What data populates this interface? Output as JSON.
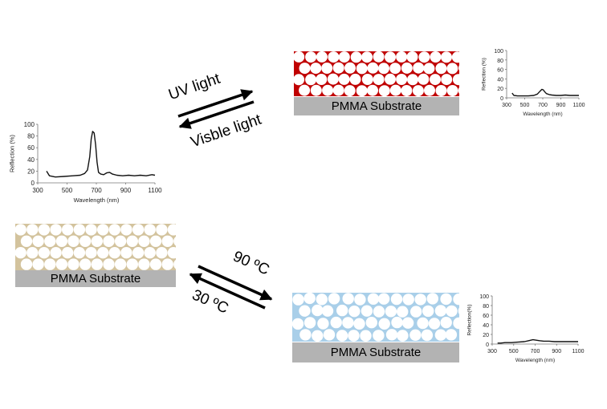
{
  "substrate_label": "PMMA Substrate",
  "uv_label": "UV light",
  "visible_label": "Visble light",
  "hot_label": "90 ºC",
  "cold_label": "30 ºC",
  "colors": {
    "red_matrix": "#c00000",
    "beige_matrix": "#d3c39d",
    "blue_matrix": "#a9cfe9",
    "substrate": "#b3b3b3"
  },
  "chart_data": [
    {
      "id": "initial",
      "type": "line",
      "xlabel": "Wavelength (nm)",
      "ylabel": "Reflection (%)",
      "xlim": [
        300,
        1100
      ],
      "ylim": [
        0,
        100
      ],
      "xticks": [
        300,
        500,
        700,
        900,
        1100
      ],
      "yticks": [
        0,
        20,
        40,
        60,
        80,
        100
      ],
      "xtick_labels": [
        "300",
        "500",
        "700",
        "900",
        "1100"
      ],
      "ytick_labels": [
        "0",
        "20",
        "40",
        "60",
        "80",
        "100"
      ],
      "x": [
        360,
        380,
        420,
        480,
        540,
        590,
        620,
        640,
        655,
        665,
        675,
        685,
        695,
        705,
        715,
        730,
        750,
        770,
        790,
        810,
        840,
        880,
        920,
        960,
        1000,
        1040,
        1080,
        1100
      ],
      "y": [
        20,
        12,
        10,
        11,
        12,
        13,
        16,
        22,
        45,
        75,
        88,
        85,
        65,
        35,
        18,
        15,
        14,
        17,
        18,
        15,
        13,
        12,
        13,
        12,
        13,
        12,
        14,
        13
      ]
    },
    {
      "id": "uv",
      "type": "line",
      "xlabel": "Wavelength (nm)",
      "ylabel": "Reflection (%)",
      "xlim": [
        300,
        1100
      ],
      "ylim": [
        0,
        100
      ],
      "xticks": [
        300,
        500,
        700,
        900,
        1100
      ],
      "yticks": [
        0,
        20,
        40,
        60,
        80,
        100
      ],
      "xtick_labels": [
        "300",
        "500",
        "700",
        "900",
        "1100"
      ],
      "ytick_labels": [
        "0",
        "20",
        "40",
        "60",
        "80",
        "100"
      ],
      "x": [
        360,
        380,
        420,
        480,
        540,
        600,
        640,
        670,
        690,
        705,
        720,
        740,
        770,
        800,
        850,
        900,
        950,
        1000,
        1050,
        1100
      ],
      "y": [
        10,
        5,
        4,
        4,
        4,
        5,
        8,
        14,
        18,
        17,
        13,
        9,
        7,
        6,
        5,
        5,
        6,
        5,
        5,
        5
      ]
    },
    {
      "id": "heat",
      "type": "line",
      "xlabel": "Wavelength (nm)",
      "ylabel": "Reflection(%)",
      "xlim": [
        300,
        1100
      ],
      "ylim": [
        0,
        100
      ],
      "xticks": [
        300,
        500,
        700,
        900,
        1100
      ],
      "yticks": [
        0,
        20,
        40,
        60,
        80,
        100
      ],
      "xtick_labels": [
        "300",
        "500",
        "700",
        "900",
        "1100"
      ],
      "ytick_labels": [
        "0",
        "20",
        "40",
        "60",
        "80",
        "100"
      ],
      "x": [
        350,
        380,
        420,
        480,
        540,
        600,
        640,
        680,
        710,
        740,
        780,
        830,
        880,
        940,
        1000,
        1050,
        1100
      ],
      "y": [
        2,
        2,
        3,
        3,
        4,
        5,
        7,
        9,
        8,
        7,
        6,
        6,
        5,
        5,
        5,
        5,
        5
      ]
    }
  ]
}
